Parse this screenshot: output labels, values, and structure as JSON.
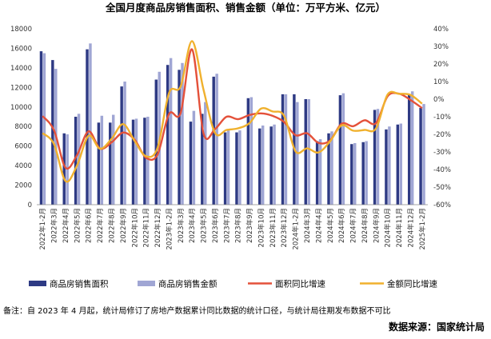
{
  "chart_data": {
    "type": "bar",
    "title": "全国月度商品房销售面积、销售金额（单位：万平方米、亿元）",
    "categories": [
      "2022年1-2月",
      "2022年3月",
      "2022年4月",
      "2022年5月",
      "2022年6月",
      "2022年7月",
      "2022年8月",
      "2022年9月",
      "2022年10月",
      "2022年11月",
      "2022年12月",
      "2023年1-2月",
      "2023年3月",
      "2023年4月",
      "2023年5月",
      "2023年6月",
      "2023年7月",
      "2023年8月",
      "2023年9月",
      "2023年10月",
      "2023年11月",
      "2023年12月",
      "2024年1-2月",
      "2024年3月",
      "2024年4月",
      "2024年5月",
      "2024年6月",
      "2024年7月",
      "2024年8月",
      "2024年9月",
      "2024年10月",
      "2024年11月",
      "2024年12月",
      "2025年1-2月"
    ],
    "left_axis": {
      "min": 0,
      "max": 18000,
      "ticks": [
        "0",
        "2000",
        "4000",
        "6000",
        "8000",
        "10000",
        "12000",
        "14000",
        "16000",
        "18000"
      ]
    },
    "right_axis": {
      "min": -60,
      "max": 40,
      "ticks": [
        "-60%",
        "-50%",
        "-40%",
        "-30%",
        "-20%",
        "-10%",
        "0%",
        "10%",
        "20%",
        "30%",
        "40%"
      ]
    },
    "series": [
      {
        "name": "商品房销售面积",
        "type": "bar",
        "axis": "left",
        "color": "#2e3a84",
        "values": [
          15700,
          14800,
          7300,
          9000,
          15900,
          8400,
          8400,
          12100,
          8700,
          8900,
          12800,
          14300,
          13800,
          8500,
          9300,
          13100,
          7400,
          7400,
          10900,
          7800,
          8000,
          11300,
          11300,
          10800,
          6500,
          7300,
          11200,
          6200,
          6400,
          9700,
          7700,
          8200,
          11300,
          9900
        ]
      },
      {
        "name": "商品房销售金额",
        "type": "bar",
        "axis": "left",
        "color": "#a0a6d4",
        "values": [
          15500,
          13900,
          7200,
          9300,
          16500,
          9100,
          9200,
          12600,
          8800,
          9000,
          13600,
          15000,
          14500,
          9600,
          10500,
          13400,
          7600,
          7600,
          11000,
          8100,
          8200,
          11300,
          10500,
          10800,
          6700,
          7500,
          11400,
          6300,
          6500,
          9800,
          8000,
          8300,
          11600,
          10300
        ]
      },
      {
        "name": "面积同比增速",
        "type": "line",
        "axis": "right",
        "color": "#e4513a",
        "values": [
          -9.6,
          -17.7,
          -39.0,
          -31.8,
          -18.3,
          -28.1,
          -24.6,
          -19.0,
          -23.0,
          -33.3,
          -31.5,
          -8.4,
          -8.0,
          28.3,
          -19.6,
          -17.0,
          -10.0,
          -11.4,
          -9.0,
          -8.1,
          -9.5,
          -13.0,
          -20.5,
          -19.4,
          -24.9,
          -23.5,
          -14.0,
          -15.4,
          -12.0,
          -13.6,
          1.6,
          3.1,
          -0.5,
          -5.1
        ]
      },
      {
        "name": "金额同比增速",
        "type": "line",
        "axis": "right",
        "color": "#f0b12e",
        "values": [
          -19.3,
          -25.6,
          -46.6,
          -37.7,
          -20.8,
          -28.2,
          -22.6,
          -14.2,
          -23.7,
          -32.5,
          -27.7,
          3.5,
          7.1,
          33.0,
          5.3,
          -19.2,
          -17.5,
          -16.6,
          -13.6,
          -5.4,
          -7.0,
          -9.5,
          -29.7,
          -28.0,
          -30.3,
          -24.0,
          -14.9,
          -17.9,
          -17.5,
          -16.6,
          2.6,
          3.0,
          2.4,
          -2.6
        ]
      }
    ],
    "legend_position": "bottom",
    "grid": false
  },
  "note": "备注：自 2023 年 4 月起，统计局修订了房地产数据累计同比数据的统计口径，与统计局往期发布数据不可比",
  "source": "数据来源：国家统计局"
}
